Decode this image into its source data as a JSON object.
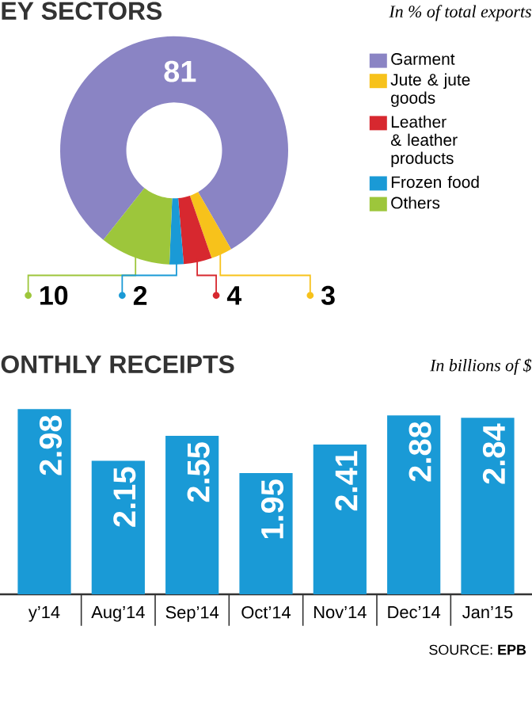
{
  "chart_data": [
    {
      "type": "donut",
      "title": "EY SECTORS",
      "subtitle": "In % of total exports",
      "categories": [
        "Garment",
        "Jute & jute goods",
        "Leather & leather products",
        "Frozen food",
        "Others"
      ],
      "values": [
        81,
        3,
        4,
        2,
        10
      ],
      "colors": [
        "#8a84c4",
        "#f7c21b",
        "#d7282f",
        "#1a9ad6",
        "#9dc63b"
      ],
      "data_labels": true,
      "legend": "right"
    },
    {
      "type": "bar",
      "title": "ONTHLY RECEIPTS",
      "subtitle": "In billions of $",
      "categories": [
        "y’14",
        "Aug’14",
        "Sep’14",
        "Oct’14",
        "Nov’14",
        "Dec’14",
        "Jan’15"
      ],
      "values": [
        2.98,
        2.15,
        2.55,
        1.95,
        2.41,
        2.88,
        2.84
      ],
      "color": "#1a9ad6",
      "data_labels": true,
      "annotations": [
        "SOURCE: **EPB**"
      ]
    }
  ]
}
